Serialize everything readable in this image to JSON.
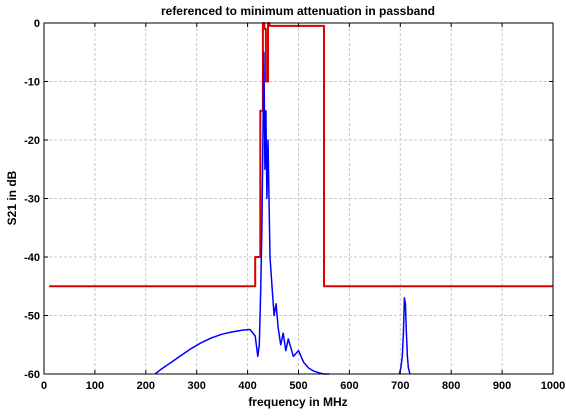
{
  "chart_data": {
    "type": "line",
    "title": "referenced to minimum attenuation in passband",
    "xlabel": "frequency in MHz",
    "ylabel": "S21 in dB",
    "xlim": [
      0,
      1000
    ],
    "ylim": [
      -60,
      0
    ],
    "grid": true,
    "xticks": [
      0,
      100,
      200,
      300,
      400,
      500,
      600,
      700,
      800,
      900,
      1000
    ],
    "yticks": [
      0,
      -10,
      -20,
      -30,
      -40,
      -50,
      -60
    ],
    "colors": {
      "mask": "#dd0000",
      "response": "#0000ff",
      "grid": "#c8c8c8"
    },
    "series": [
      {
        "key": "mask",
        "style": "step",
        "x": [
          10,
          415,
          415,
          425,
          425,
          430,
          430,
          433,
          433,
          436,
          436,
          440,
          440,
          443,
          443,
          550,
          550,
          1000
        ],
        "y": [
          -45,
          -45,
          -40,
          -40,
          -15,
          -15,
          0,
          0,
          -1,
          -1,
          -10,
          -10,
          0,
          0,
          -0.5,
          -0.5,
          -45,
          -45
        ]
      },
      {
        "key": "response",
        "style": "line",
        "x": [
          218,
          230,
          250,
          270,
          290,
          310,
          330,
          350,
          370,
          390,
          405,
          415,
          420,
          423,
          426,
          428,
          430,
          432,
          434,
          436,
          438,
          440,
          444,
          448,
          452,
          456,
          460,
          465,
          470,
          475,
          480,
          490,
          500,
          510,
          520,
          530,
          540,
          550,
          560
        ],
        "y": [
          -60,
          -59.2,
          -58,
          -56.8,
          -55.6,
          -54.6,
          -53.8,
          -53.2,
          -52.8,
          -52.5,
          -52.4,
          -53.5,
          -57,
          -55,
          -45,
          -35,
          -20,
          -5,
          -25,
          -15,
          -30,
          -20,
          -40,
          -45,
          -50,
          -48,
          -52,
          -55,
          -53,
          -56,
          -54,
          -57,
          -56,
          -58,
          -59,
          -59.5,
          -59.8,
          -60,
          -60
        ]
      },
      {
        "key": "response-peak-2",
        "style": "line",
        "x": [
          698,
          701,
          704,
          706,
          708,
          710,
          712,
          714,
          716,
          719
        ],
        "y": [
          -60,
          -59,
          -57,
          -53,
          -47,
          -48,
          -53,
          -57,
          -59,
          -60
        ]
      }
    ]
  }
}
